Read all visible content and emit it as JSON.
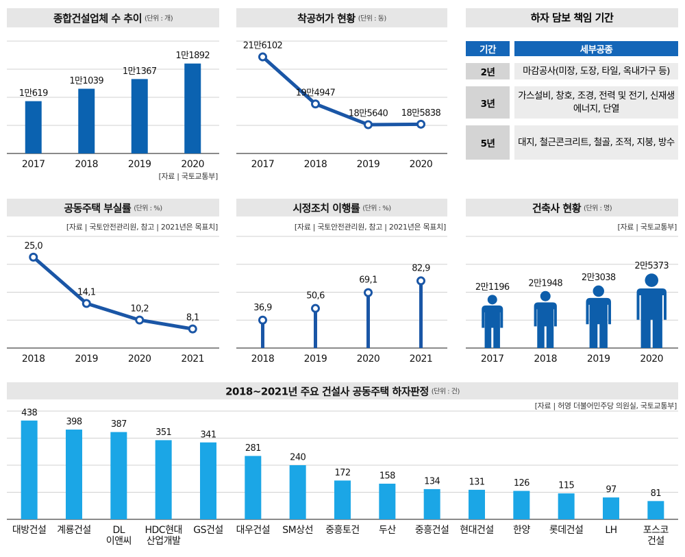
{
  "chart_data": [
    {
      "type": "bar",
      "title": "종합건설업체 수 추이",
      "subtitle": "(단위 : 개)",
      "categories": [
        "2017",
        "2018",
        "2019",
        "2020"
      ],
      "values": [
        10619,
        11039,
        11367,
        11892
      ],
      "value_labels": [
        "1만619",
        "1만1039",
        "1만1367",
        "1만1892"
      ],
      "ylim": [
        8850,
        12650
      ],
      "color": "#0b62b0",
      "source": "[자료 | 국토교통부]"
    },
    {
      "type": "line",
      "title": "착공허가 현황",
      "subtitle": "(단위 : 동)",
      "categories": [
        "2017",
        "2018",
        "2019",
        "2020"
      ],
      "values": [
        216102,
        194947,
        185640,
        185838
      ],
      "value_labels": [
        "21만6102",
        "19만4947",
        "18만5640",
        "18만5838"
      ],
      "ylim": [
        172700,
        223200
      ],
      "color": "#1a56a6"
    },
    {
      "type": "line",
      "title": "공동주택 부실률",
      "subtitle": "(단위 : %)",
      "source": "[자료 | 국토안전관리원, 참고 | 2021년은 목표치]",
      "categories": [
        "2018",
        "2019",
        "2020",
        "2021"
      ],
      "values": [
        25.0,
        14.1,
        10.2,
        8.1
      ],
      "value_labels": [
        "25,0",
        "14,1",
        "10,2",
        "8,1"
      ],
      "ylim": [
        3.6,
        29.9
      ],
      "color": "#1a56a6"
    },
    {
      "type": "lollipop",
      "title": "시정조치 이행률",
      "subtitle": "(단위 : %)",
      "source": "[자료 | 국토안전관리원, 참고 | 2021년은 목표치]",
      "categories": [
        "2018",
        "2019",
        "2020",
        "2021"
      ],
      "values": [
        36.9,
        50.6,
        69.1,
        82.9
      ],
      "value_labels": [
        "36,9",
        "50,6",
        "69,1",
        "82,9"
      ],
      "ylim": [
        4.2,
        135
      ],
      "color": "#1a56a6"
    },
    {
      "type": "pictograph",
      "title": "건축사 현황",
      "subtitle": "(단위 : 명)",
      "source": "[자료 | 국토교통부]",
      "categories": [
        "2017",
        "2018",
        "2019",
        "2020"
      ],
      "values": [
        21196,
        21948,
        23038,
        25373
      ],
      "value_labels": [
        "2만1196",
        "2만1948",
        "2만3038",
        "2만5373"
      ],
      "ylim": [
        10750,
        32680
      ],
      "color": "#0d5eab"
    },
    {
      "type": "bar",
      "title": "2018~2021년 주요 건설사 공동주택 하자판정",
      "subtitle": "(단위 : 건)",
      "source": "[자료 | 허영 더불어민주당 의원실, 국토교통부]",
      "categories": [
        "대방건설",
        "계룡건설",
        "DL\n이앤씨",
        "HDC현대\n산업개발",
        "GS건설",
        "대우건설",
        "SM상선",
        "중흥토건",
        "두산",
        "중흥건설",
        "현대건설",
        "한양",
        "롯데건설",
        "LH",
        "포스코\n건설"
      ],
      "values": [
        438,
        398,
        387,
        351,
        341,
        281,
        240,
        172,
        158,
        134,
        131,
        126,
        115,
        97,
        81
      ],
      "ylim": [
        0,
        480
      ],
      "color": "#1ba6e6"
    }
  ],
  "table": {
    "title": "하자 담보 책임 기간",
    "header": [
      "기간",
      "세부공종"
    ],
    "rows": [
      [
        "2년",
        "마감공사(미장, 도장, 타일, 옥내가구 등)"
      ],
      [
        "3년",
        "가스설비, 창호, 조경, 전력 및 전기, 신재생에너지, 단열"
      ],
      [
        "5년",
        "대지, 철근콘크리트, 철골, 조적, 지붕, 방수"
      ]
    ]
  }
}
